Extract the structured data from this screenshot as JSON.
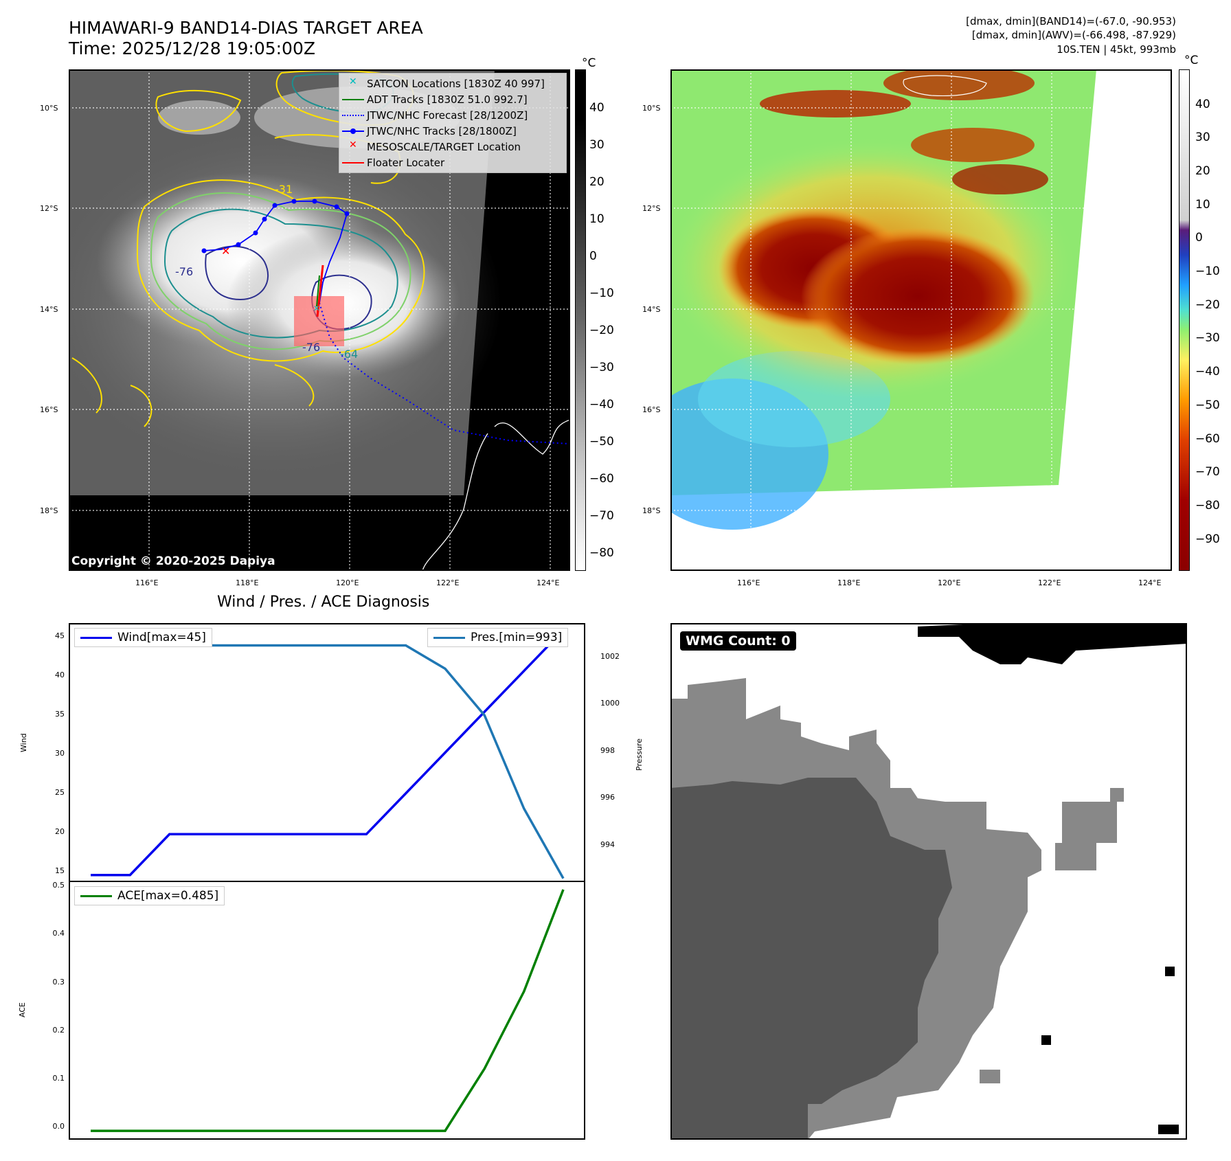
{
  "header": {
    "title": "HIMAWARI-9 BAND14-DIAS TARGET AREA",
    "time": "Time: 2025/12/28 19:05:00Z",
    "info_line1": "[dmax, dmin](BAND14)=(-67.0, -90.953)",
    "info_line2": "[dmax, dmin](AWV)=(-66.498, -87.929)",
    "info_line3": "10S.TEN | 45kt, 993mb"
  },
  "map_left": {
    "copyright": "Copyright © 2020-2025 Dapiya",
    "lat_labels": [
      "10°S",
      "12°S",
      "14°S",
      "16°S",
      "18°S"
    ],
    "lon_labels": [
      "116°E",
      "118°E",
      "120°E",
      "122°E",
      "124°E"
    ],
    "contour_labels": [
      "-31",
      "-76",
      "-76",
      "-64"
    ],
    "legend": [
      {
        "label": "SATCON Locations [1830Z 40 997]",
        "color": "#00bcbc",
        "symbol": "x"
      },
      {
        "label": "ADT Tracks [1830Z 51.0 992.7]",
        "color": "#008000",
        "symbol": "line"
      },
      {
        "label": "JTWC/NHC Forecast [28/1200Z]",
        "color": "#0000ff",
        "symbol": "dotted"
      },
      {
        "label": "JTWC/NHC Tracks [28/1800Z]",
        "color": "#0000ff",
        "symbol": "line-dot"
      },
      {
        "label": "MESOSCALE/TARGET Location",
        "color": "#ff0000",
        "symbol": "x"
      },
      {
        "label": "Floater Locater",
        "color": "#ff0000",
        "symbol": "line"
      }
    ],
    "colorbar": {
      "unit": "°C",
      "ticks": [
        "40",
        "30",
        "20",
        "10",
        "0",
        "−10",
        "−20",
        "−30",
        "−40",
        "−50",
        "−60",
        "−70",
        "−80"
      ]
    }
  },
  "map_right": {
    "lat_labels": [
      "10°S",
      "12°S",
      "14°S",
      "16°S",
      "18°S"
    ],
    "lon_labels": [
      "116°E",
      "118°E",
      "120°E",
      "122°E",
      "124°E"
    ],
    "colorbar": {
      "unit": "°C",
      "ticks": [
        "40",
        "30",
        "20",
        "10",
        "0",
        "−10",
        "−20",
        "−30",
        "−40",
        "−50",
        "−60",
        "−70",
        "−80",
        "−90"
      ]
    }
  },
  "diagnosis": {
    "title": "Wind / Pres. / ACE Diagnosis",
    "wind_ylabel": "Wind",
    "pressure_ylabel": "Pressure",
    "ace_ylabel": "ACE",
    "wind_legend": "Wind[max=45]",
    "pres_legend": "Pres.[min=993]",
    "ace_legend": "ACE[max=0.485]",
    "wind_ticks": [
      "45",
      "40",
      "35",
      "30",
      "25",
      "20",
      "15"
    ],
    "pres_ticks": [
      "1002",
      "1000",
      "998",
      "996",
      "994"
    ],
    "ace_ticks": [
      "0.5",
      "0.4",
      "0.3",
      "0.2",
      "0.1",
      "0.0"
    ]
  },
  "wmg": {
    "label": "WMG Count: 0"
  },
  "colors": {
    "wind": "#0000ee",
    "pressure": "#1f77b4",
    "ace": "#008000"
  },
  "chart_data": [
    {
      "type": "line",
      "title": "Wind / Pres. / ACE Diagnosis",
      "x": [
        0,
        1,
        2,
        3,
        4,
        5,
        6,
        7,
        8,
        9,
        10,
        11,
        12
      ],
      "series": [
        {
          "name": "Wind[max=45]",
          "axis": "left",
          "values": [
            15,
            15,
            20,
            20,
            20,
            20,
            20,
            20,
            25,
            30,
            35,
            40,
            45
          ]
        },
        {
          "name": "Pres.[min=993]",
          "axis": "right",
          "values": [
            1003,
            1003,
            1003,
            1003,
            1003,
            1003,
            1003,
            1003,
            1003,
            1002,
            1000,
            996,
            993
          ]
        }
      ],
      "ylabel": "Wind",
      "ylim": [
        14.3,
        45.7
      ],
      "y2label": "Pressure",
      "y2lim": [
        992.9,
        1003.9
      ]
    },
    {
      "type": "line",
      "x": [
        0,
        1,
        2,
        3,
        4,
        5,
        6,
        7,
        8,
        9,
        10,
        11,
        12
      ],
      "series": [
        {
          "name": "ACE[max=0.485]",
          "values": [
            0,
            0,
            0,
            0,
            0,
            0,
            0,
            0,
            0,
            0,
            0.125,
            0.28,
            0.485
          ]
        }
      ],
      "ylabel": "ACE",
      "ylim": [
        -0.015,
        0.5
      ]
    }
  ]
}
